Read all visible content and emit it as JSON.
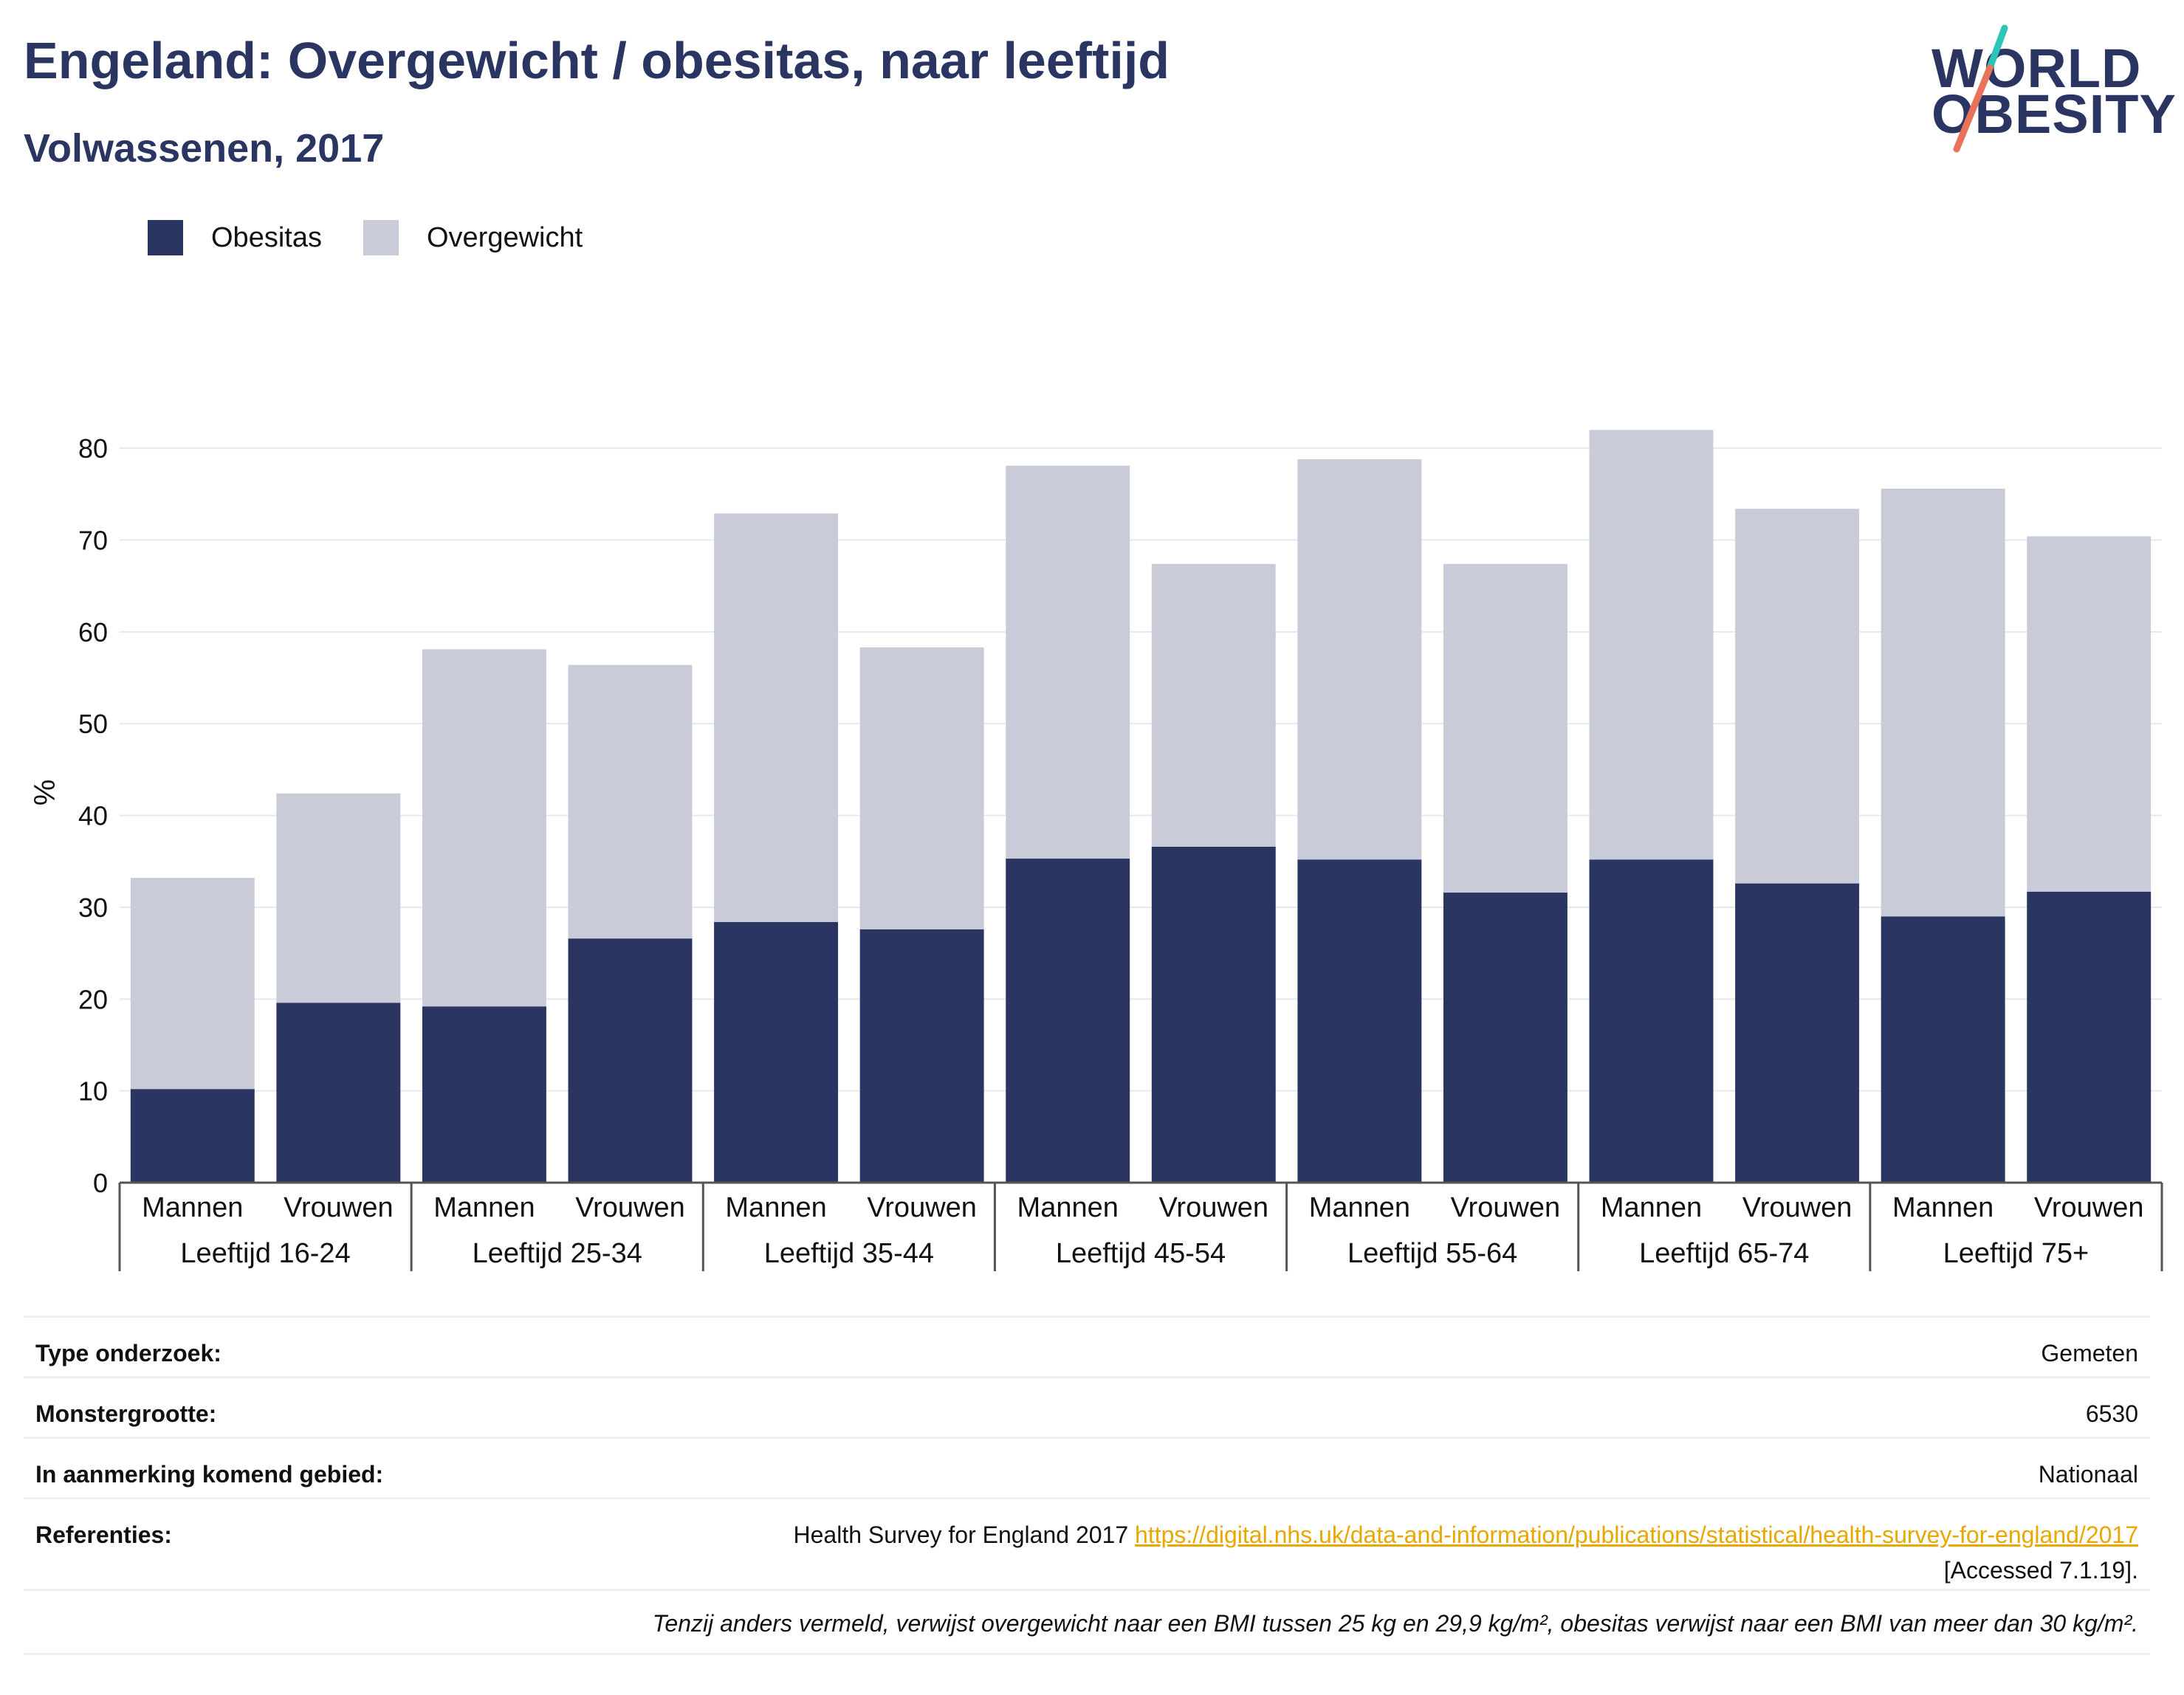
{
  "header": {
    "title": "Engeland: Overgewicht / obesitas, naar leeftijd",
    "subtitle": "Volwassenen, 2017"
  },
  "logo": {
    "line1": "WORLD",
    "line2": "OBESITY",
    "slash_colors": [
      "#2ec4b6",
      "#e8735a"
    ]
  },
  "colors": {
    "obesitas": "#2b3561",
    "overgewicht": "#c9ccd8",
    "text": "#2b3561",
    "link": "#e8a800"
  },
  "chart_data": {
    "type": "bar",
    "stacked": true,
    "ylabel": "%",
    "ylim": [
      0,
      85
    ],
    "yticks": [
      0,
      10,
      20,
      30,
      40,
      50,
      60,
      70,
      80
    ],
    "grid": true,
    "legend_position": "top-left",
    "groups": [
      "Leeftijd 16-24",
      "Leeftijd 25-34",
      "Leeftijd 35-44",
      "Leeftijd 45-54",
      "Leeftijd 55-64",
      "Leeftijd 65-74",
      "Leeftijd 75+"
    ],
    "categories": [
      "Mannen",
      "Vrouwen",
      "Mannen",
      "Vrouwen",
      "Mannen",
      "Vrouwen",
      "Mannen",
      "Vrouwen",
      "Mannen",
      "Vrouwen",
      "Mannen",
      "Vrouwen",
      "Mannen",
      "Vrouwen"
    ],
    "series": [
      {
        "name": "Obesitas",
        "values": [
          10.2,
          19.6,
          19.2,
          26.6,
          28.4,
          27.6,
          35.3,
          36.6,
          35.2,
          31.6,
          35.2,
          32.6,
          29.0,
          31.7
        ]
      },
      {
        "name": "Overgewicht",
        "values": [
          23.0,
          22.8,
          38.9,
          29.8,
          44.5,
          30.7,
          42.8,
          30.8,
          43.6,
          35.8,
          46.8,
          40.8,
          46.6,
          38.7
        ]
      }
    ]
  },
  "meta": {
    "type_label": "Type onderzoek:",
    "type_value": "Gemeten",
    "sample_label": "Monstergrootte:",
    "sample_value": "6530",
    "area_label": "In aanmerking komend gebied:",
    "area_value": "Nationaal",
    "ref_label": "Referenties:",
    "ref_text": "Health Survey for England 2017",
    "ref_link": "https://digital.nhs.uk/data-and-information/publications/statistical/health-survey-for-england/2017",
    "ref_accessed": "[Accessed 7.1.19].",
    "note": "Tenzij anders vermeld, verwijst overgewicht naar een BMI tussen 25 kg en 29,9 kg/m², obesitas verwijst naar een BMI van meer dan 30 kg/m²."
  }
}
